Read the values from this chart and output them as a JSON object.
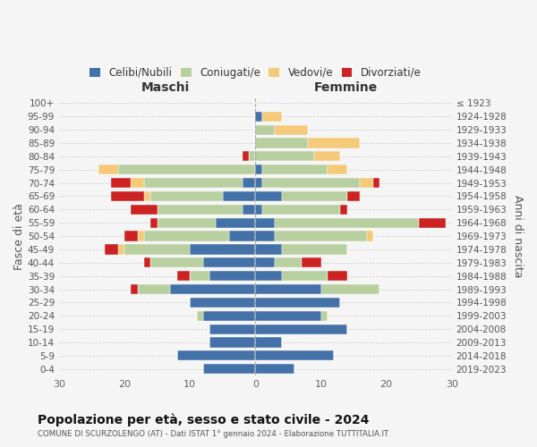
{
  "age_groups": [
    "0-4",
    "5-9",
    "10-14",
    "15-19",
    "20-24",
    "25-29",
    "30-34",
    "35-39",
    "40-44",
    "45-49",
    "50-54",
    "55-59",
    "60-64",
    "65-69",
    "70-74",
    "75-79",
    "80-84",
    "85-89",
    "90-94",
    "95-99",
    "100+"
  ],
  "birth_years": [
    "2019-2023",
    "2014-2018",
    "2009-2013",
    "2004-2008",
    "1999-2003",
    "1994-1998",
    "1989-1993",
    "1984-1988",
    "1979-1983",
    "1974-1978",
    "1969-1973",
    "1964-1968",
    "1959-1963",
    "1954-1958",
    "1949-1953",
    "1944-1948",
    "1939-1943",
    "1934-1938",
    "1929-1933",
    "1924-1928",
    "≤ 1923"
  ],
  "colors": {
    "celibi": "#4472a8",
    "coniugati": "#b8cfa0",
    "vedovi": "#f5c97a",
    "divorziati": "#cc2222"
  },
  "maschi": {
    "celibi": [
      8,
      12,
      7,
      7,
      8,
      10,
      13,
      7,
      8,
      10,
      4,
      6,
      2,
      5,
      2,
      0,
      0,
      0,
      0,
      0,
      0
    ],
    "coniugati": [
      0,
      0,
      0,
      0,
      1,
      0,
      5,
      3,
      8,
      10,
      13,
      9,
      13,
      11,
      15,
      21,
      1,
      0,
      0,
      0,
      0
    ],
    "vedovi": [
      0,
      0,
      0,
      0,
      0,
      0,
      0,
      0,
      0,
      1,
      1,
      0,
      0,
      1,
      2,
      3,
      0,
      0,
      0,
      0,
      0
    ],
    "divorziati": [
      0,
      0,
      0,
      0,
      0,
      0,
      1,
      2,
      1,
      2,
      2,
      1,
      4,
      5,
      3,
      0,
      1,
      0,
      0,
      0,
      0
    ]
  },
  "femmine": {
    "celibi": [
      6,
      12,
      4,
      14,
      10,
      13,
      10,
      4,
      3,
      4,
      3,
      3,
      1,
      4,
      1,
      1,
      0,
      0,
      0,
      1,
      0
    ],
    "coniugati": [
      0,
      0,
      0,
      0,
      1,
      0,
      9,
      7,
      4,
      10,
      14,
      22,
      12,
      10,
      15,
      10,
      9,
      8,
      3,
      0,
      0
    ],
    "vedovi": [
      0,
      0,
      0,
      0,
      0,
      0,
      0,
      0,
      0,
      0,
      1,
      0,
      0,
      0,
      2,
      3,
      4,
      8,
      5,
      3,
      0
    ],
    "divorziati": [
      0,
      0,
      0,
      0,
      0,
      0,
      0,
      3,
      3,
      0,
      0,
      4,
      1,
      2,
      1,
      0,
      0,
      0,
      0,
      0,
      0
    ]
  },
  "xlim": 30,
  "title": "Popolazione per età, sesso e stato civile - 2024",
  "subtitle": "COMUNE DI SCURZOLENGO (AT) - Dati ISTAT 1° gennaio 2024 - Elaborazione TUTTITALIA.IT",
  "ylabel_left": "Fasce di età",
  "ylabel_right": "Anni di nascita",
  "xlabel_maschi": "Maschi",
  "xlabel_femmine": "Femmine",
  "background_color": "#f5f5f5",
  "legend_labels": [
    "Celibi/Nubili",
    "Coniugati/e",
    "Vedovi/e",
    "Divorziati/e"
  ]
}
